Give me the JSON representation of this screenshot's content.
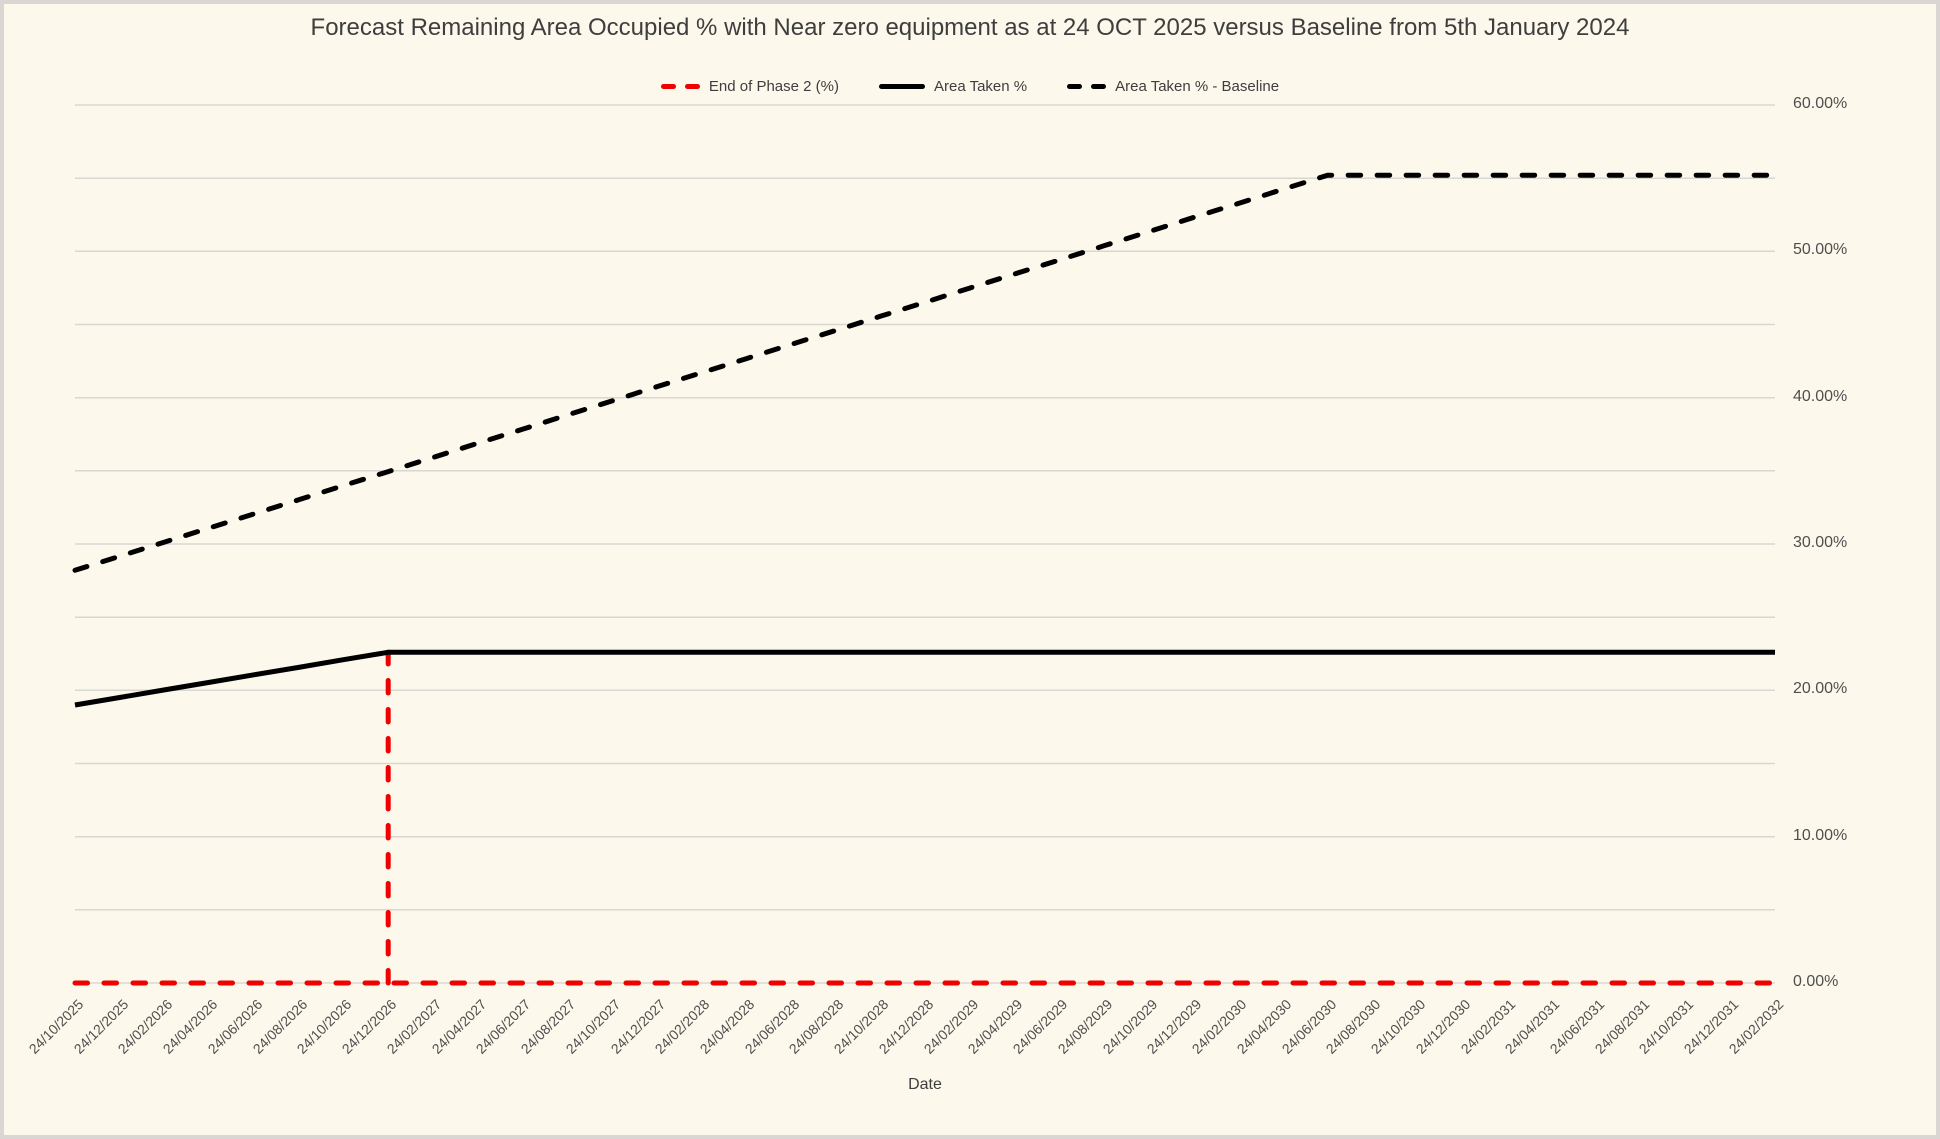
{
  "page": {
    "background_color": "#FCF8EB",
    "border_color": "#D9D6D3",
    "gridline_color": "#D9D7D2",
    "text_color": "#3E3E3E",
    "tick_text_color": "#4F4F4F"
  },
  "chart_data": {
    "type": "line",
    "title": "Forecast Remaining Area Occupied % with Near zero equipment as at 24 OCT 2025 versus Baseline from 5th January 2024",
    "xlabel": "Date",
    "ylabel": "",
    "ylim": [
      0,
      60
    ],
    "y_grid_step": 5,
    "grid": true,
    "legend_position": "top-center",
    "y_ticks": [
      {
        "value": 0,
        "label": "0.00%"
      },
      {
        "value": 10,
        "label": "10.00%"
      },
      {
        "value": 20,
        "label": "20.00%"
      },
      {
        "value": 30,
        "label": "30.00%"
      },
      {
        "value": 40,
        "label": "40.00%"
      },
      {
        "value": 50,
        "label": "50.00%"
      },
      {
        "value": 60,
        "label": "60.00%"
      }
    ],
    "categories": [
      "24/10/2025",
      "24/12/2025",
      "24/02/2026",
      "24/04/2026",
      "24/06/2026",
      "24/08/2026",
      "24/10/2026",
      "24/12/2026",
      "24/02/2027",
      "24/04/2027",
      "24/06/2027",
      "24/08/2027",
      "24/10/2027",
      "24/12/2027",
      "24/02/2028",
      "24/04/2028",
      "24/06/2028",
      "24/08/2028",
      "24/10/2028",
      "24/12/2028",
      "24/02/2029",
      "24/04/2029",
      "24/06/2029",
      "24/08/2029",
      "24/10/2029",
      "24/12/2029",
      "24/02/2030",
      "24/04/2030",
      "24/06/2030",
      "24/08/2030",
      "24/10/2030",
      "24/12/2030",
      "24/02/2031",
      "24/04/2031",
      "24/06/2031",
      "24/08/2031",
      "24/10/2031",
      "24/12/2031",
      "24/02/2032"
    ],
    "series": [
      {
        "name": "End of Phase 2 (%)",
        "color": "#F00000",
        "line_style": "dashed",
        "render": "spike",
        "baseline_value": 0,
        "spike": {
          "category": "24/12/2026",
          "category_index": 7,
          "value": 22.6
        },
        "values": [
          0,
          0,
          0,
          0,
          0,
          0,
          0,
          22.6,
          0,
          0,
          0,
          0,
          0,
          0,
          0,
          0,
          0,
          0,
          0,
          0,
          0,
          0,
          0,
          0,
          0,
          0,
          0,
          0,
          0,
          0,
          0,
          0,
          0,
          0,
          0,
          0,
          0,
          0,
          0
        ]
      },
      {
        "name": "Area Taken %",
        "color": "#000000",
        "line_style": "solid",
        "values": [
          19.0,
          19.51,
          20.03,
          20.54,
          21.06,
          21.57,
          22.09,
          22.6,
          22.6,
          22.6,
          22.6,
          22.6,
          22.6,
          22.6,
          22.6,
          22.6,
          22.6,
          22.6,
          22.6,
          22.6,
          22.6,
          22.6,
          22.6,
          22.6,
          22.6,
          22.6,
          22.6,
          22.6,
          22.6,
          22.6,
          22.6,
          22.6,
          22.6,
          22.6,
          22.6,
          22.6,
          22.6,
          22.6,
          22.6
        ]
      },
      {
        "name": "Area Taken % - Baseline",
        "color": "#000000",
        "line_style": "dashed",
        "values": [
          28.2,
          29.16,
          30.13,
          31.09,
          32.06,
          33.02,
          33.99,
          34.95,
          35.91,
          36.88,
          37.84,
          38.81,
          39.77,
          40.74,
          41.7,
          42.66,
          43.63,
          44.59,
          45.56,
          46.52,
          47.49,
          48.45,
          49.41,
          50.38,
          51.34,
          52.31,
          53.27,
          54.24,
          55.2,
          55.2,
          55.2,
          55.2,
          55.2,
          55.2,
          55.2,
          55.2,
          55.2,
          55.2,
          55.2
        ]
      }
    ]
  }
}
